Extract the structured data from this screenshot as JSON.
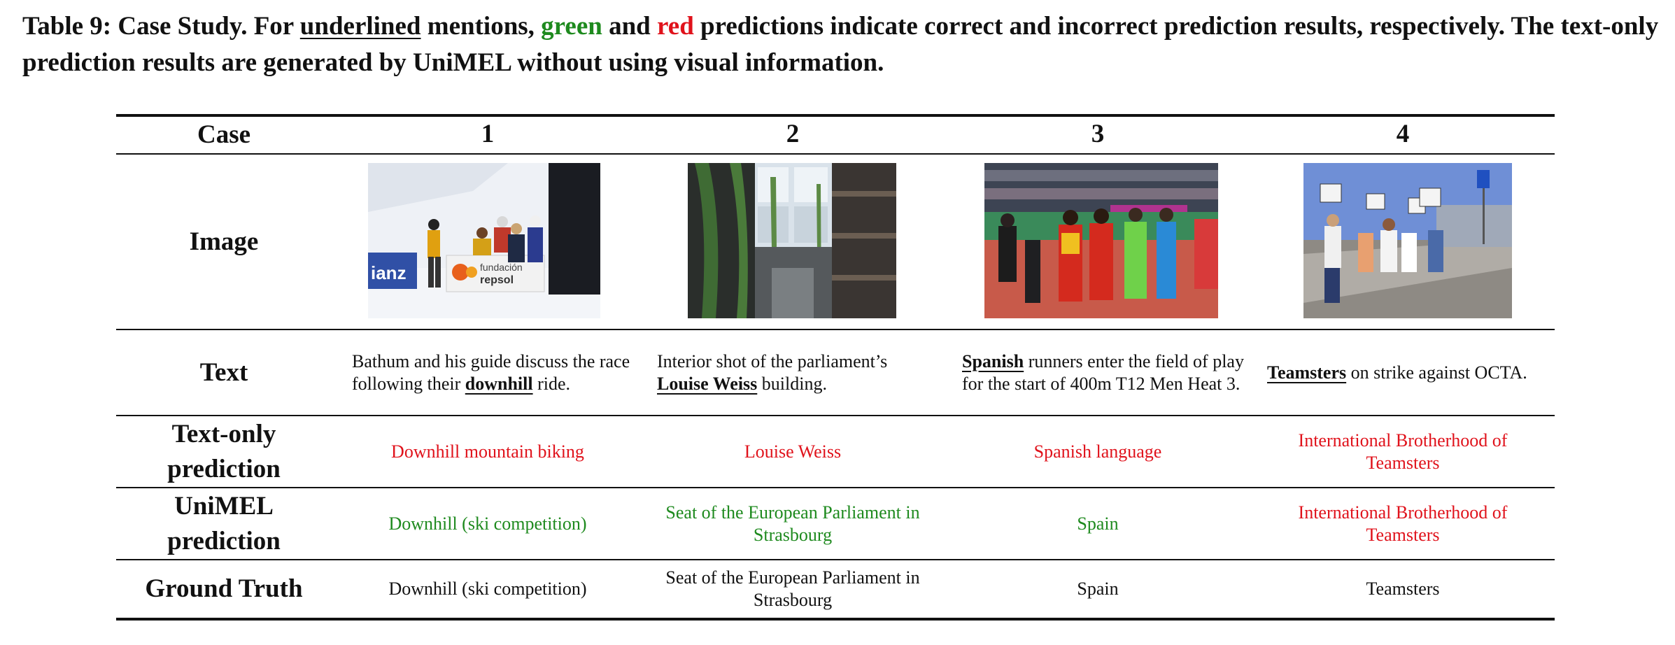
{
  "caption": {
    "p1": "Table 9: Case Study. For ",
    "underlined": "underlined",
    "p2": " mentions, ",
    "green": "green",
    "p3": " and ",
    "red": "red",
    "p4": " predictions indicate correct and incorrect prediction results, respectively. The text-only prediction results are generated by UniMEL without using visual information."
  },
  "colors": {
    "correct": "#1e8a1e",
    "incorrect": "#e0121b"
  },
  "row_headers": {
    "case": "Case",
    "image": "Image",
    "text": "Text",
    "text_only_l1": "Text-only",
    "text_only_l2": "prediction",
    "unimel_l1": "UniMEL",
    "unimel_l2": "prediction",
    "ground_truth": "Ground Truth"
  },
  "cases": [
    {
      "number": "1",
      "image": "photo of skiers posing at a snowy race finish area with sponsor banners",
      "text_before": "Bathum and his guide discuss the race following their ",
      "mention": "downhill",
      "text_after": " ride.",
      "text_only_prediction": "Downhill mountain biking",
      "text_only_correct": false,
      "unimel_prediction": "Downhill (ski competition)",
      "unimel_correct": true,
      "ground_truth": "Downhill (ski competition)"
    },
    {
      "number": "2",
      "image": "photo of a parliament building interior atrium with hanging plants",
      "text_before": "Interior shot of the parliament’s ",
      "mention": "Louise Weiss",
      "text_after": " building.",
      "text_only_prediction": "Louise Weiss",
      "text_only_correct": false,
      "unimel_prediction": "Seat of the European Parliament in Strasbourg",
      "unimel_correct": true,
      "ground_truth": "Seat of the European Parliament in Strasbourg"
    },
    {
      "number": "3",
      "image": "photo of runners in red uniforms walking in a stadium with guides",
      "text_before": "",
      "mention": "Spanish",
      "text_after": " runners enter the field of play for the start of 400m T12 Men Heat 3.",
      "text_only_prediction": "Spanish language",
      "text_only_correct": false,
      "unimel_prediction": "Spain",
      "unimel_correct": true,
      "ground_truth": "Spain"
    },
    {
      "number": "4",
      "image": "photo of people on strike holding picket signs on a sidewalk",
      "text_before": "",
      "mention": "Teamsters",
      "text_after": " on strike against OCTA.",
      "text_only_prediction": "International Brotherhood of Teamsters",
      "text_only_correct": false,
      "unimel_prediction": "International Brotherhood of Teamsters",
      "unimel_correct": false,
      "ground_truth": "Teamsters"
    }
  ]
}
